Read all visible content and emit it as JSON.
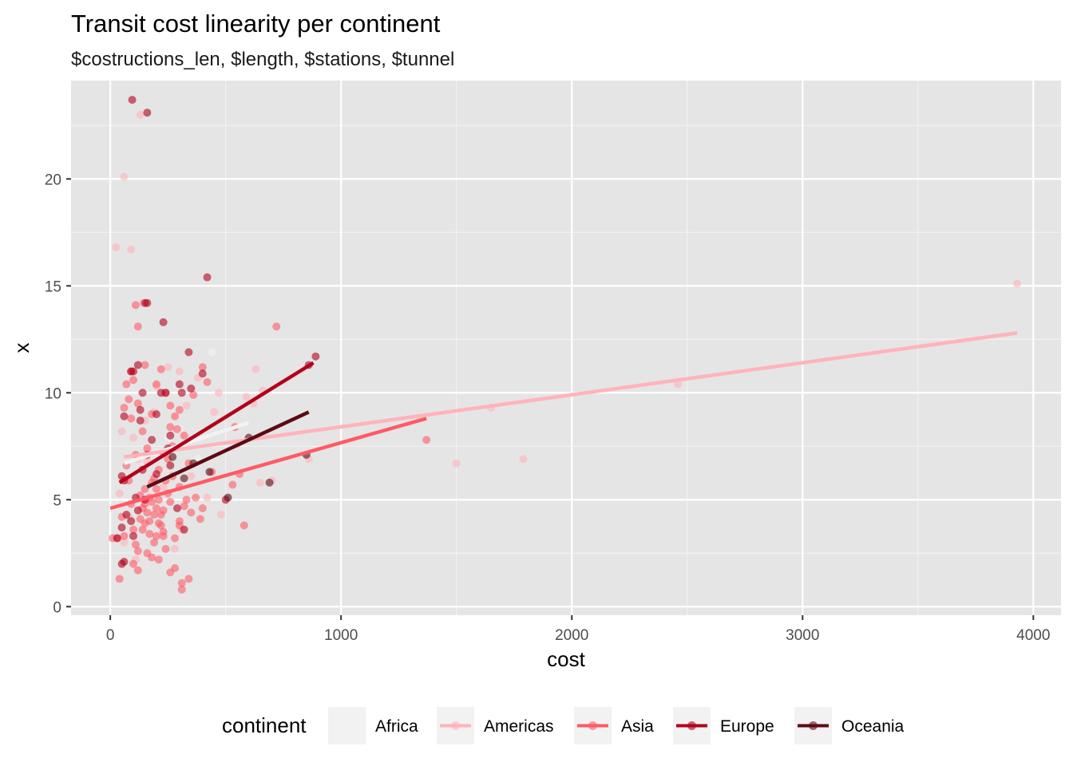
{
  "chart_data": {
    "type": "scatter",
    "title": "Transit cost linearity per continent",
    "subtitle": "$costructions_len, $length, $stations, $tunnel",
    "xlabel": "cost",
    "ylabel": "x",
    "xlim": [
      -170,
      4120
    ],
    "ylim": [
      -0.4,
      24.6
    ],
    "x_ticks": [
      0,
      1000,
      2000,
      3000,
      4000
    ],
    "y_ticks": [
      0,
      5,
      10,
      15,
      20
    ],
    "grid": true,
    "legend": {
      "title": "continent",
      "position": "bottom",
      "entries": [
        "Africa",
        "Americas",
        "Asia",
        "Europe",
        "Oceania"
      ]
    },
    "series": [
      {
        "name": "Africa",
        "color": "#f2f2f2",
        "points": [
          [
            440,
            11.9
          ],
          [
            300,
            8.3
          ],
          [
            250,
            7.9
          ],
          [
            380,
            6.9
          ],
          [
            200,
            7.2
          ]
        ],
        "trend": [
          [
            60,
            6.7
          ],
          [
            600,
            8.6
          ]
        ]
      },
      {
        "name": "Americas",
        "color": "#ffb3ba",
        "points": [
          [
            3930,
            15.1
          ],
          [
            2460,
            10.4
          ],
          [
            1650,
            9.3
          ],
          [
            1790,
            6.9
          ],
          [
            1500,
            6.7
          ],
          [
            860,
            6.9
          ],
          [
            700,
            5.9
          ],
          [
            650,
            5.8
          ],
          [
            630,
            11.1
          ],
          [
            590,
            9.8
          ],
          [
            660,
            10.1
          ],
          [
            620,
            9.5
          ],
          [
            420,
            5.1
          ],
          [
            470,
            10.0
          ],
          [
            450,
            9.1
          ],
          [
            300,
            11.0
          ],
          [
            250,
            11.2
          ],
          [
            330,
            9.4
          ],
          [
            380,
            10.7
          ],
          [
            200,
            10.3
          ],
          [
            150,
            8.7
          ],
          [
            120,
            6.9
          ],
          [
            100,
            7.9
          ],
          [
            90,
            16.7
          ],
          [
            130,
            23.0
          ],
          [
            140,
            14.2
          ],
          [
            60,
            20.1
          ],
          [
            25,
            16.8
          ],
          [
            50,
            8.2
          ],
          [
            40,
            5.3
          ],
          [
            80,
            4.2
          ],
          [
            60,
            3.0
          ],
          [
            110,
            2.2
          ],
          [
            350,
            6.1
          ],
          [
            550,
            7.6
          ],
          [
            480,
            4.3
          ],
          [
            280,
            2.7
          ],
          [
            190,
            9.1
          ],
          [
            160,
            6.8
          ],
          [
            230,
            5.6
          ],
          [
            310,
            3.6
          ]
        ],
        "trend": [
          [
            60,
            7.0
          ],
          [
            3930,
            12.8
          ]
        ]
      },
      {
        "name": "Asia",
        "color": "#ff5a65",
        "points": [
          [
            1370,
            7.8
          ],
          [
            720,
            13.1
          ],
          [
            580,
            3.8
          ],
          [
            560,
            6.2
          ],
          [
            530,
            5.7
          ],
          [
            540,
            8.4
          ],
          [
            440,
            6.3
          ],
          [
            390,
            4.1
          ],
          [
            340,
            1.3
          ],
          [
            310,
            0.8
          ],
          [
            310,
            1.1
          ],
          [
            280,
            1.8
          ],
          [
            260,
            1.6
          ],
          [
            240,
            2.7
          ],
          [
            230,
            3.5
          ],
          [
            220,
            4.3
          ],
          [
            210,
            5.0
          ],
          [
            200,
            5.5
          ],
          [
            190,
            6.0
          ],
          [
            180,
            4.9
          ],
          [
            170,
            3.4
          ],
          [
            160,
            2.5
          ],
          [
            150,
            3.9
          ],
          [
            140,
            4.6
          ],
          [
            130,
            5.2
          ],
          [
            120,
            1.7
          ],
          [
            110,
            2.9
          ],
          [
            100,
            3.6
          ],
          [
            90,
            4.8
          ],
          [
            80,
            5.9
          ],
          [
            70,
            6.6
          ],
          [
            60,
            3.3
          ],
          [
            50,
            4.2
          ],
          [
            40,
            1.3
          ],
          [
            30,
            3.2
          ],
          [
            10,
            3.2
          ],
          [
            230,
            7.2
          ],
          [
            250,
            6.9
          ],
          [
            270,
            7.5
          ],
          [
            290,
            8.3
          ],
          [
            260,
            9.4
          ],
          [
            240,
            10.0
          ],
          [
            220,
            11.1
          ],
          [
            200,
            10.4
          ],
          [
            180,
            9.0
          ],
          [
            160,
            7.4
          ],
          [
            140,
            8.2
          ],
          [
            120,
            9.5
          ],
          [
            100,
            10.6
          ],
          [
            90,
            11.0
          ],
          [
            110,
            14.1
          ],
          [
            120,
            13.1
          ],
          [
            150,
            11.3
          ],
          [
            400,
            11.2
          ],
          [
            420,
            10.5
          ],
          [
            360,
            9.9
          ],
          [
            340,
            6.7
          ],
          [
            370,
            5.1
          ],
          [
            320,
            4.7
          ],
          [
            300,
            4.0
          ],
          [
            280,
            3.2
          ],
          [
            150,
            5.5
          ],
          [
            170,
            4.0
          ],
          [
            190,
            3.0
          ],
          [
            210,
            2.2
          ],
          [
            230,
            4.5
          ],
          [
            250,
            5.3
          ],
          [
            270,
            6.1
          ],
          [
            300,
            5.6
          ],
          [
            330,
            5.0
          ],
          [
            180,
            5.8
          ],
          [
            200,
            4.6
          ],
          [
            220,
            3.8
          ],
          [
            160,
            4.4
          ],
          [
            140,
            3.6
          ],
          [
            120,
            2.6
          ],
          [
            100,
            2.0
          ],
          [
            260,
            4.9
          ],
          [
            200,
            3.3
          ],
          [
            240,
            5.9
          ],
          [
            300,
            3.8
          ],
          [
            350,
            4.4
          ],
          [
            400,
            4.6
          ],
          [
            130,
            4.1
          ],
          [
            170,
            5.1
          ],
          [
            190,
            4.3
          ],
          [
            210,
            3.9
          ],
          [
            150,
            4.8
          ],
          [
            230,
            3.3
          ],
          [
            180,
            2.3
          ],
          [
            300,
            9.2
          ],
          [
            280,
            8.9
          ],
          [
            320,
            8.0
          ],
          [
            210,
            6.4
          ],
          [
            260,
            8.4
          ],
          [
            110,
            7.1
          ],
          [
            80,
            9.7
          ],
          [
            70,
            10.4
          ],
          [
            90,
            8.8
          ],
          [
            60,
            9.3
          ]
        ],
        "trend": [
          [
            0,
            4.6
          ],
          [
            1370,
            8.8
          ]
        ]
      },
      {
        "name": "Europe",
        "color": "#b3001b",
        "points": [
          [
            890,
            11.7
          ],
          [
            860,
            11.3
          ],
          [
            420,
            15.4
          ],
          [
            230,
            13.3
          ],
          [
            160,
            14.2
          ],
          [
            150,
            14.2
          ],
          [
            95,
            23.7
          ],
          [
            160,
            23.1
          ],
          [
            340,
            11.9
          ],
          [
            400,
            10.9
          ],
          [
            350,
            10.2
          ],
          [
            300,
            10.4
          ],
          [
            240,
            10.0
          ],
          [
            200,
            9.0
          ],
          [
            140,
            10.0
          ],
          [
            130,
            9.2
          ],
          [
            120,
            11.3
          ],
          [
            100,
            11.0
          ],
          [
            90,
            11.0
          ],
          [
            60,
            8.9
          ],
          [
            50,
            6.1
          ],
          [
            60,
            5.9
          ],
          [
            70,
            4.3
          ],
          [
            50,
            3.7
          ],
          [
            50,
            2.0
          ],
          [
            60,
            2.1
          ],
          [
            30,
            3.2
          ],
          [
            120,
            4.5
          ],
          [
            150,
            5.0
          ],
          [
            200,
            6.2
          ],
          [
            250,
            7.4
          ],
          [
            260,
            8.0
          ],
          [
            180,
            7.8
          ],
          [
            140,
            6.4
          ],
          [
            110,
            5.1
          ],
          [
            100,
            3.3
          ],
          [
            90,
            4.0
          ],
          [
            130,
            8.7
          ],
          [
            160,
            7.1
          ],
          [
            220,
            10.0
          ],
          [
            260,
            6.6
          ],
          [
            290,
            4.6
          ],
          [
            320,
            3.6
          ],
          [
            500,
            5.0
          ],
          [
            310,
            10.0
          ]
        ],
        "trend": [
          [
            40,
            5.8
          ],
          [
            880,
            11.4
          ]
        ]
      },
      {
        "name": "Oceania",
        "color": "#5c0a14",
        "points": [
          [
            850,
            7.1
          ],
          [
            510,
            5.1
          ],
          [
            430,
            6.3
          ],
          [
            360,
            6.7
          ],
          [
            690,
            5.8
          ],
          [
            600,
            7.9
          ],
          [
            320,
            6.0
          ],
          [
            270,
            7.0
          ]
        ],
        "trend": [
          [
            160,
            5.6
          ],
          [
            860,
            9.1
          ]
        ]
      }
    ]
  }
}
